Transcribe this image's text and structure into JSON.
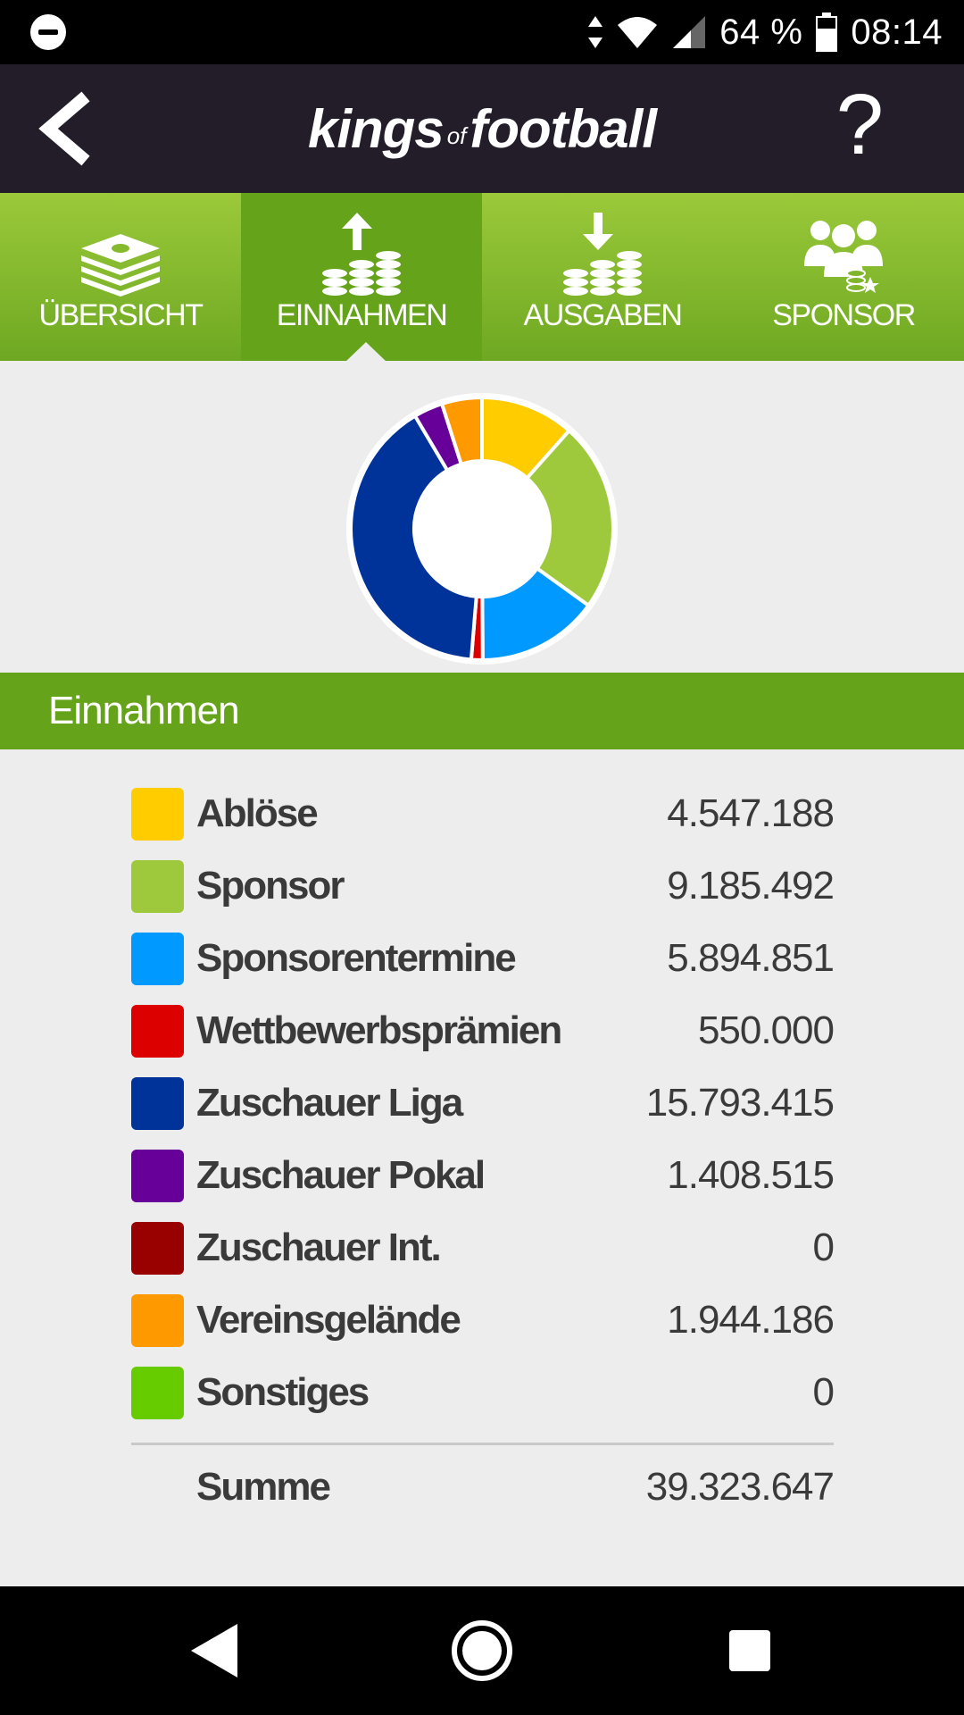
{
  "status_bar": {
    "battery": "64 %",
    "time": "08:14",
    "icons": [
      "do-not-disturb-icon",
      "data-arrows-icon",
      "wifi-icon",
      "signal-icon",
      "battery-icon"
    ]
  },
  "header": {
    "logo_left": "kings",
    "logo_of": "of",
    "logo_right": "football",
    "help": "?"
  },
  "tabs": [
    {
      "label": "ÜBERSICHT",
      "icon": "money-stack-icon",
      "active": false
    },
    {
      "label": "EINNAHMEN",
      "icon": "income-coins-icon",
      "active": true
    },
    {
      "label": "AUSGABEN",
      "icon": "expense-coins-icon",
      "active": false
    },
    {
      "label": "SPONSOR",
      "icon": "sponsor-people-icon",
      "active": false
    }
  ],
  "section_title": "Einnahmen",
  "income": {
    "items": [
      {
        "label": "Ablöse",
        "value": "4.547.188",
        "color": "#ffcc00"
      },
      {
        "label": "Sponsor",
        "value": "9.185.492",
        "color": "#9fc93c"
      },
      {
        "label": "Sponsorentermine",
        "value": "5.894.851",
        "color": "#0099ff"
      },
      {
        "label": "Wettbewerbsprämien",
        "value": "550.000",
        "color": "#dd0000"
      },
      {
        "label": "Zuschauer Liga",
        "value": "15.793.415",
        "color": "#003399"
      },
      {
        "label": "Zuschauer Pokal",
        "value": "1.408.515",
        "color": "#660099"
      },
      {
        "label": "Zuschauer Int.",
        "value": "0",
        "color": "#990000"
      },
      {
        "label": "Vereinsgelände",
        "value": "1.944.186",
        "color": "#ff9900"
      },
      {
        "label": "Sonstiges",
        "value": "0",
        "color": "#66cc00"
      }
    ],
    "sum_label": "Summe",
    "sum_value": "39.323.647"
  },
  "chart_data": {
    "type": "pie",
    "donut": true,
    "categories": [
      "Ablöse",
      "Sponsor",
      "Sponsorentermine",
      "Wettbewerbsprämien",
      "Zuschauer Liga",
      "Zuschauer Pokal",
      "Zuschauer Int.",
      "Vereinsgelände",
      "Sonstiges"
    ],
    "values": [
      4547188,
      9185492,
      5894851,
      550000,
      15793415,
      1408515,
      0,
      1944186,
      0
    ],
    "colors": [
      "#ffcc00",
      "#9fc93c",
      "#0099ff",
      "#dd0000",
      "#003399",
      "#660099",
      "#990000",
      "#ff9900",
      "#66cc00"
    ]
  },
  "colors": {
    "header_bg": "#221d29",
    "tab_green": "#65a31b",
    "background": "#ededed"
  }
}
